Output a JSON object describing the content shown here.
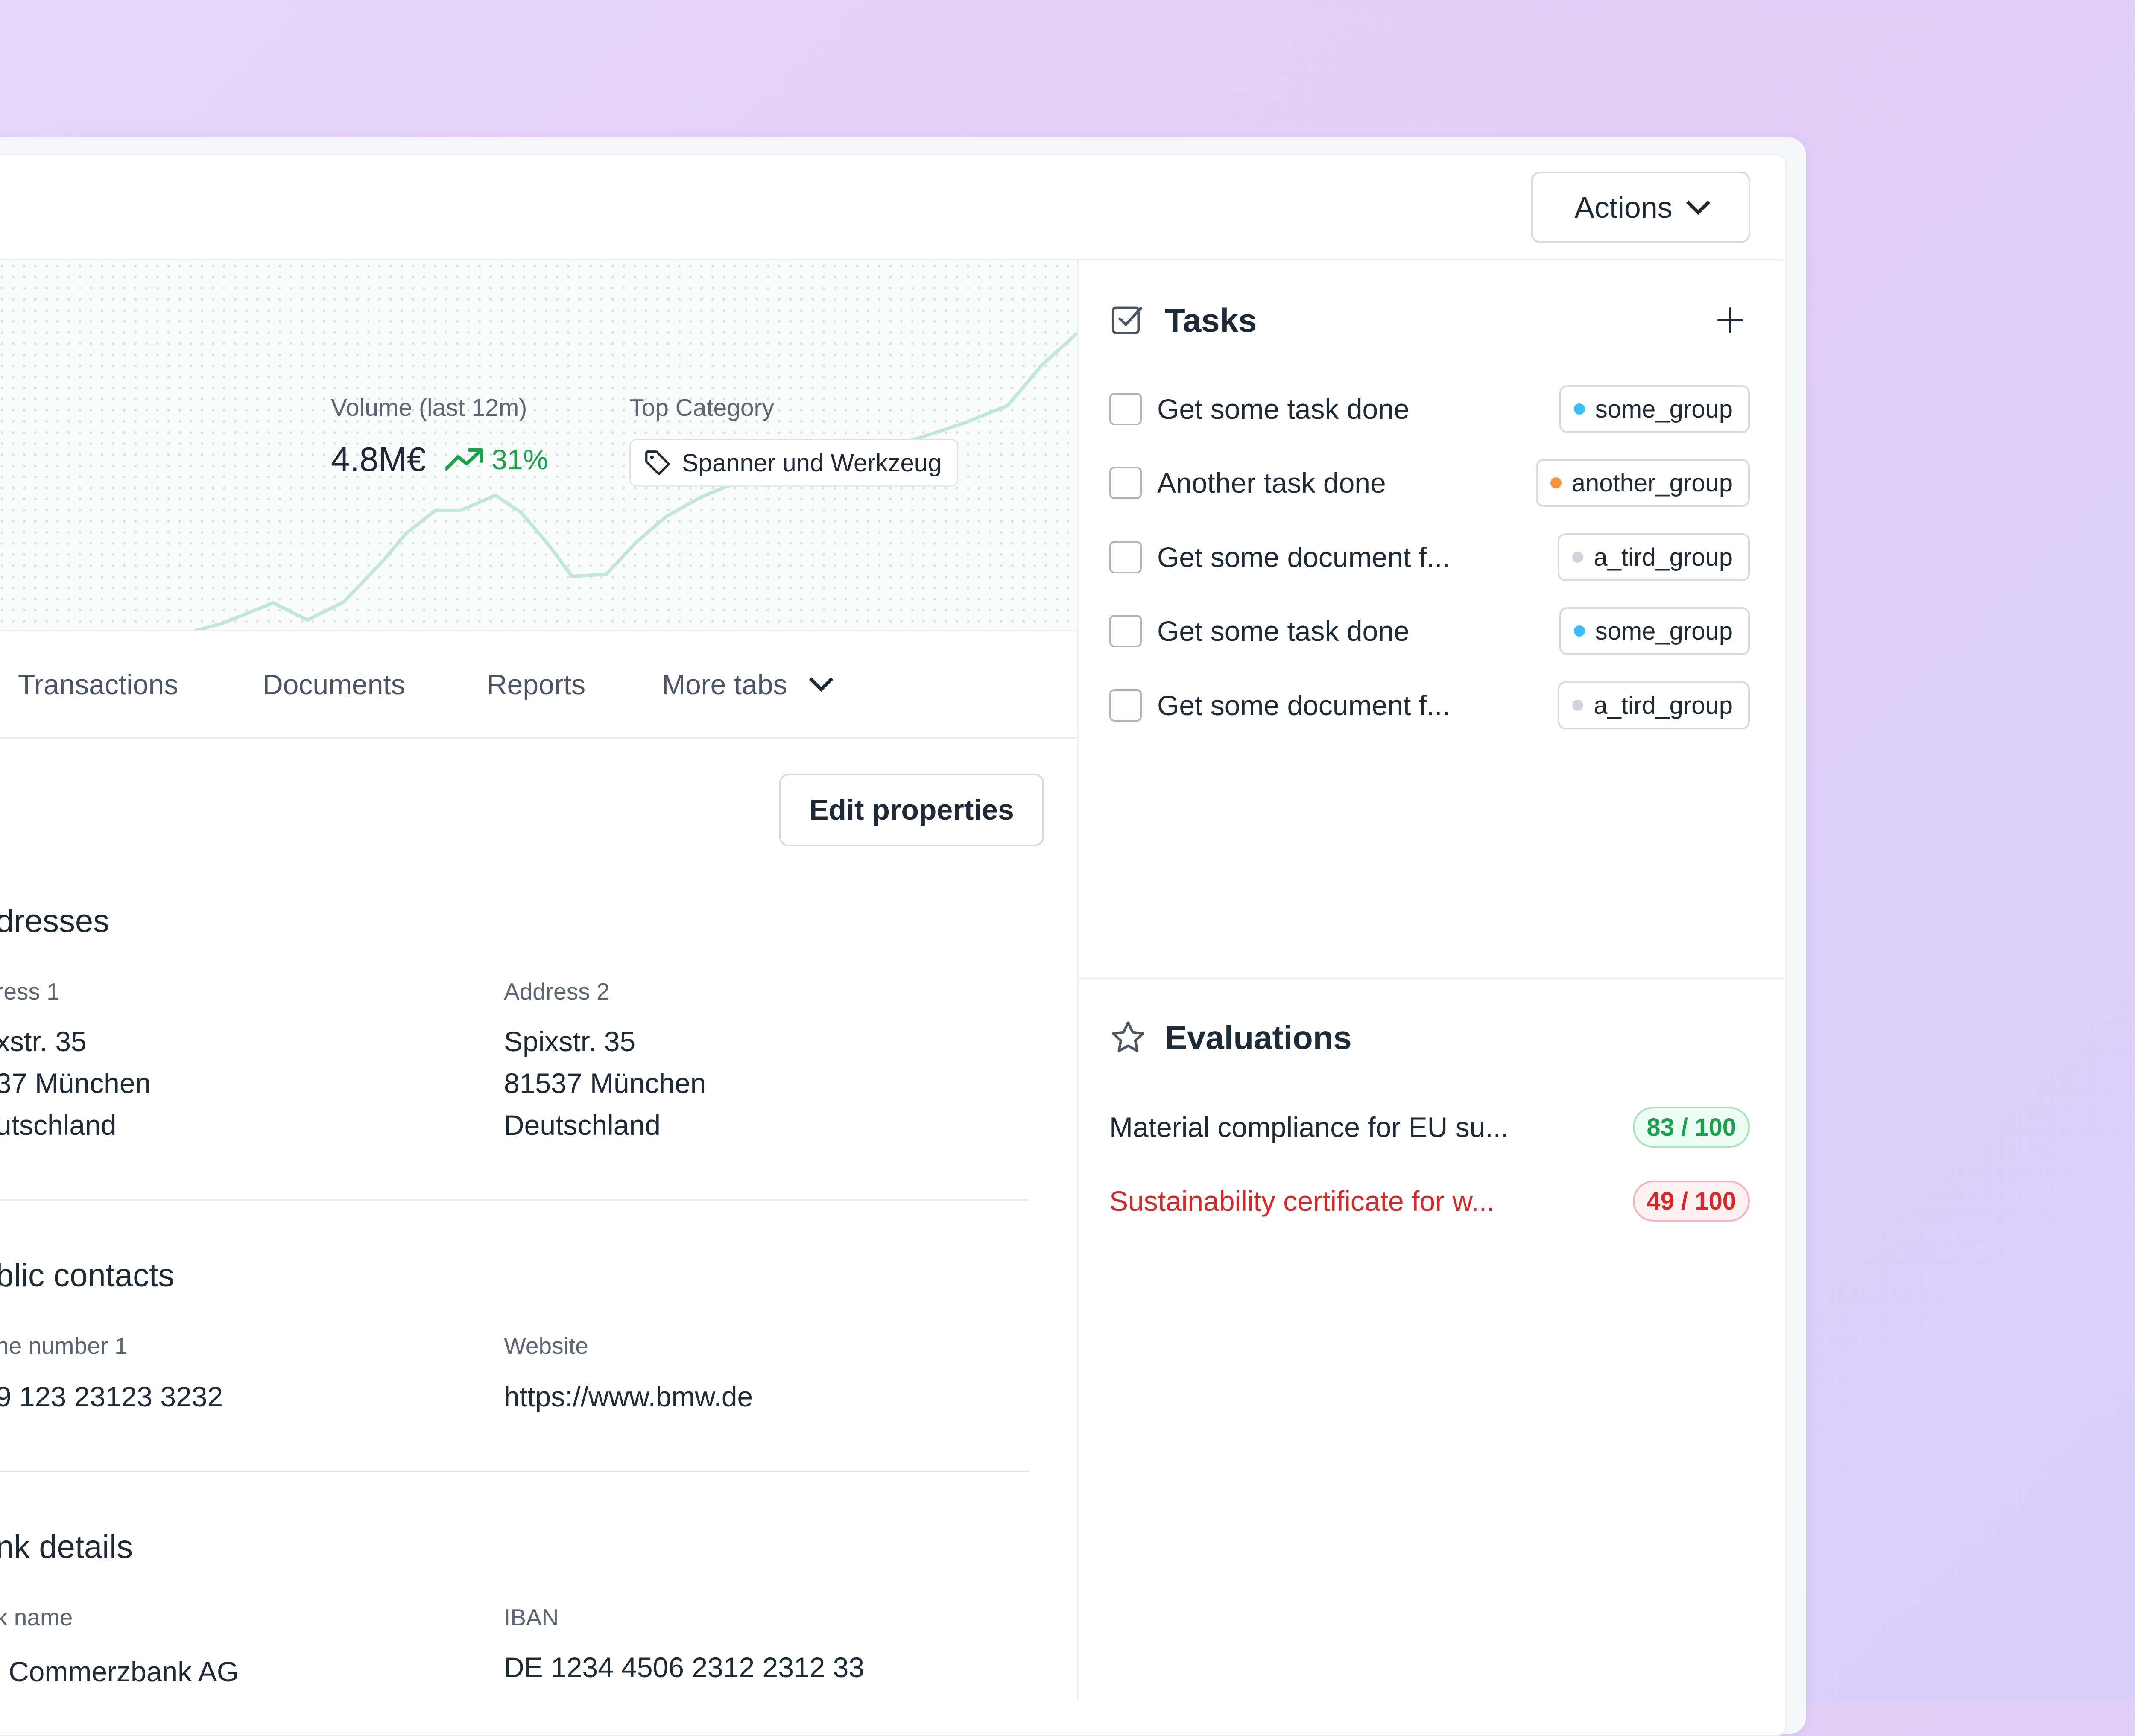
{
  "header": {
    "actions_label": "Actions"
  },
  "stats": {
    "volume_label": "Volume (last 12m)",
    "volume_value": "4.8M€",
    "volume_trend": "31%",
    "category_label": "Top Category",
    "category_value": "Spanner und Werkzeug"
  },
  "tabs": [
    {
      "label": "Transactions"
    },
    {
      "label": "Documents"
    },
    {
      "label": "Reports"
    },
    {
      "label": "More tabs"
    }
  ],
  "edit_label": "Edit properties",
  "addresses": {
    "title": "dresses",
    "address1_label": "ress 1",
    "address1_lines": [
      "xstr. 35",
      "37 München",
      "utschland"
    ],
    "address2_label": "Address 2",
    "address2_lines": [
      "Spixstr. 35",
      "81537 München",
      "Deutschland"
    ]
  },
  "contacts": {
    "title": "blic contacts",
    "phone_label": "ne number 1",
    "phone_value": "9 123 23123 3232",
    "website_label": "Website",
    "website_value": "https://www.bmw.de"
  },
  "bank": {
    "title": "nk details",
    "bank_label": "k name",
    "bank_value": "Commerzbank AG",
    "iban_label": "IBAN",
    "iban_value": "DE 1234 4506 2312 2312 33"
  },
  "tasks": {
    "title": "Tasks",
    "items": [
      {
        "label": "Get some task done",
        "group": "some_group",
        "group_color": "#38bdf8"
      },
      {
        "label": "Another task done",
        "group": "another_group",
        "group_color": "#fb923c"
      },
      {
        "label": "Get some document f...",
        "group": "a_tird_group",
        "group_color": "#d1d5db"
      },
      {
        "label": "Get some task done",
        "group": "some_group",
        "group_color": "#38bdf8"
      },
      {
        "label": "Get some document f...",
        "group": "a_tird_group",
        "group_color": "#d1d5db"
      }
    ]
  },
  "evaluations": {
    "title": "Evaluations",
    "items": [
      {
        "label": "Material compliance for EU su...",
        "score": "83 / 100",
        "status": "good",
        "color": "#1f2a37"
      },
      {
        "label": "Sustainability certificate for w...",
        "score": "49 / 100",
        "status": "bad",
        "color": "#dc2626"
      }
    ]
  }
}
